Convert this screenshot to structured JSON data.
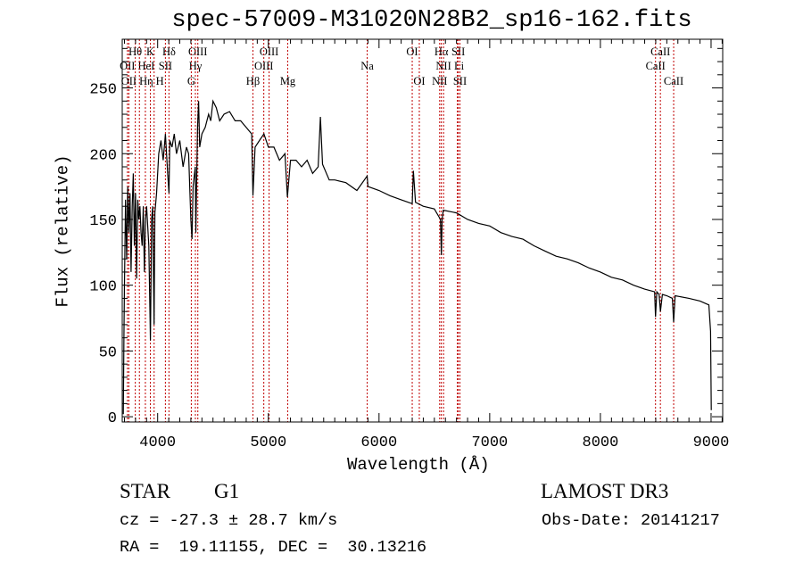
{
  "chart_data": {
    "type": "line",
    "title": "spec-57009-M31020N28B2_sp16-162.fits",
    "xlabel": "Wavelength (Å)",
    "ylabel": "Flux (relative)",
    "xlim": [
      3680,
      9105
    ],
    "ylim": [
      -4,
      287
    ],
    "xticks": [
      4000,
      5000,
      6000,
      7000,
      8000,
      9000
    ],
    "xtick_labels": [
      "4000",
      "5000",
      "6000",
      "7000",
      "8000",
      "9000"
    ],
    "yticks": [
      0,
      50,
      100,
      150,
      200,
      250
    ],
    "ytick_labels": [
      "0",
      "50",
      "100",
      "150",
      "200",
      "250"
    ],
    "grid": false,
    "series": [
      {
        "name": "spectrum",
        "color": "#000000",
        "points": [
          [
            3690,
            2
          ],
          [
            3695,
            60
          ],
          [
            3700,
            100
          ],
          [
            3710,
            165
          ],
          [
            3720,
            120
          ],
          [
            3730,
            175
          ],
          [
            3740,
            140
          ],
          [
            3750,
            170
          ],
          [
            3760,
            110
          ],
          [
            3770,
            160
          ],
          [
            3780,
            185
          ],
          [
            3790,
            130
          ],
          [
            3800,
            170
          ],
          [
            3810,
            105
          ],
          [
            3820,
            165
          ],
          [
            3830,
            150
          ],
          [
            3840,
            160
          ],
          [
            3850,
            140
          ],
          [
            3860,
            130
          ],
          [
            3870,
            160
          ],
          [
            3880,
            110
          ],
          [
            3890,
            150
          ],
          [
            3900,
            160
          ],
          [
            3920,
            130
          ],
          [
            3935,
            58
          ],
          [
            3945,
            150
          ],
          [
            3955,
            160
          ],
          [
            3968,
            70
          ],
          [
            3975,
            155
          ],
          [
            3990,
            170
          ],
          [
            4010,
            200
          ],
          [
            4030,
            210
          ],
          [
            4050,
            195
          ],
          [
            4070,
            215
          ],
          [
            4090,
            185
          ],
          [
            4102,
            170
          ],
          [
            4110,
            210
          ],
          [
            4130,
            205
          ],
          [
            4150,
            215
          ],
          [
            4170,
            200
          ],
          [
            4200,
            210
          ],
          [
            4230,
            190
          ],
          [
            4260,
            205
          ],
          [
            4280,
            200
          ],
          [
            4300,
            150
          ],
          [
            4310,
            135
          ],
          [
            4320,
            175
          ],
          [
            4340,
            190
          ],
          [
            4345,
            140
          ],
          [
            4360,
            220
          ],
          [
            4370,
            240
          ],
          [
            4380,
            205
          ],
          [
            4400,
            215
          ],
          [
            4430,
            220
          ],
          [
            4460,
            230
          ],
          [
            4480,
            225
          ],
          [
            4500,
            240
          ],
          [
            4530,
            235
          ],
          [
            4560,
            225
          ],
          [
            4600,
            230
          ],
          [
            4650,
            232
          ],
          [
            4700,
            225
          ],
          [
            4750,
            225
          ],
          [
            4800,
            220
          ],
          [
            4850,
            215
          ],
          [
            4861,
            168
          ],
          [
            4880,
            205
          ],
          [
            4920,
            210
          ],
          [
            4960,
            215
          ],
          [
            5000,
            205
          ],
          [
            5050,
            205
          ],
          [
            5100,
            195
          ],
          [
            5150,
            200
          ],
          [
            5172,
            167
          ],
          [
            5200,
            195
          ],
          [
            5250,
            195
          ],
          [
            5300,
            190
          ],
          [
            5350,
            195
          ],
          [
            5400,
            185
          ],
          [
            5450,
            190
          ],
          [
            5470,
            228
          ],
          [
            5490,
            192
          ],
          [
            5550,
            180
          ],
          [
            5600,
            180
          ],
          [
            5700,
            178
          ],
          [
            5800,
            172
          ],
          [
            5893,
            183
          ],
          [
            5900,
            175
          ],
          [
            6000,
            172
          ],
          [
            6100,
            168
          ],
          [
            6200,
            165
          ],
          [
            6300,
            162
          ],
          [
            6310,
            187
          ],
          [
            6330,
            163
          ],
          [
            6400,
            160
          ],
          [
            6500,
            158
          ],
          [
            6555,
            150
          ],
          [
            6563,
            123
          ],
          [
            6570,
            150
          ],
          [
            6580,
            157
          ],
          [
            6700,
            155
          ],
          [
            6800,
            150
          ],
          [
            6900,
            147
          ],
          [
            7000,
            145
          ],
          [
            7100,
            140
          ],
          [
            7200,
            137
          ],
          [
            7300,
            135
          ],
          [
            7400,
            130
          ],
          [
            7500,
            126
          ],
          [
            7600,
            122
          ],
          [
            7700,
            120
          ],
          [
            7800,
            117
          ],
          [
            7900,
            113
          ],
          [
            8000,
            110
          ],
          [
            8100,
            106
          ],
          [
            8200,
            104
          ],
          [
            8300,
            100
          ],
          [
            8400,
            97
          ],
          [
            8490,
            95
          ],
          [
            8498,
            76
          ],
          [
            8510,
            95
          ],
          [
            8530,
            93
          ],
          [
            8542,
            80
          ],
          [
            8560,
            93
          ],
          [
            8600,
            92
          ],
          [
            8650,
            90
          ],
          [
            8662,
            72
          ],
          [
            8675,
            92
          ],
          [
            8800,
            90
          ],
          [
            8900,
            88
          ],
          [
            8980,
            85
          ],
          [
            8995,
            65
          ],
          [
            9002,
            5
          ]
        ]
      }
    ],
    "line_markers": [
      {
        "label": "Hθ",
        "wavelength": 3798,
        "row": 1
      },
      {
        "label": "K",
        "wavelength": 3934,
        "row": 1
      },
      {
        "label": "Hδ",
        "wavelength": 4102,
        "row": 1
      },
      {
        "label": "OIII",
        "wavelength": 4363,
        "row": 1
      },
      {
        "label": "OIII",
        "wavelength": 5007,
        "row": 1
      },
      {
        "label": "OI",
        "wavelength": 6300,
        "row": 1
      },
      {
        "label": "Hα",
        "wavelength": 6563,
        "row": 1
      },
      {
        "label": "SII",
        "wavelength": 6716,
        "row": 1
      },
      {
        "label": "CaII",
        "wavelength": 8542,
        "row": 1
      },
      {
        "label": "OII",
        "wavelength": 3727,
        "row": 2
      },
      {
        "label": "HeI",
        "wavelength": 3889,
        "row": 2
      },
      {
        "label": "SII",
        "wavelength": 4070,
        "row": 2
      },
      {
        "label": "Hγ",
        "wavelength": 4341,
        "row": 2
      },
      {
        "label": "OIII",
        "wavelength": 4959,
        "row": 2
      },
      {
        "label": "Na",
        "wavelength": 5893,
        "row": 2
      },
      {
        "label": "NII",
        "wavelength": 6583,
        "row": 2
      },
      {
        "label": "Li",
        "wavelength": 6708,
        "row": 2
      },
      {
        "label": "CaII",
        "wavelength": 8498,
        "row": 2
      },
      {
        "label": "OII",
        "wavelength": 3740,
        "row": 3
      },
      {
        "label": "Hη",
        "wavelength": 3835,
        "row": 3
      },
      {
        "label": "H",
        "wavelength": 3968,
        "row": 3
      },
      {
        "label": "G",
        "wavelength": 4304,
        "row": 3
      },
      {
        "label": "Hβ",
        "wavelength": 4861,
        "row": 3
      },
      {
        "label": "Mg",
        "wavelength": 5175,
        "row": 3
      },
      {
        "label": "OI",
        "wavelength": 6364,
        "row": 3
      },
      {
        "label": "NII",
        "wavelength": 6548,
        "row": 3
      },
      {
        "label": "SII",
        "wavelength": 6731,
        "row": 3
      },
      {
        "label": "CaII",
        "wavelength": 8662,
        "row": 3
      }
    ],
    "marker_color": "#c00000"
  },
  "info": {
    "object_type": "STAR",
    "subclass": "G1",
    "cz": "cz = -27.3 ± 28.7 km/s",
    "coords": "RA =  19.11155, DEC =  30.13216",
    "survey": "LAMOST DR3",
    "obs_date": "Obs-Date: 20141217"
  }
}
